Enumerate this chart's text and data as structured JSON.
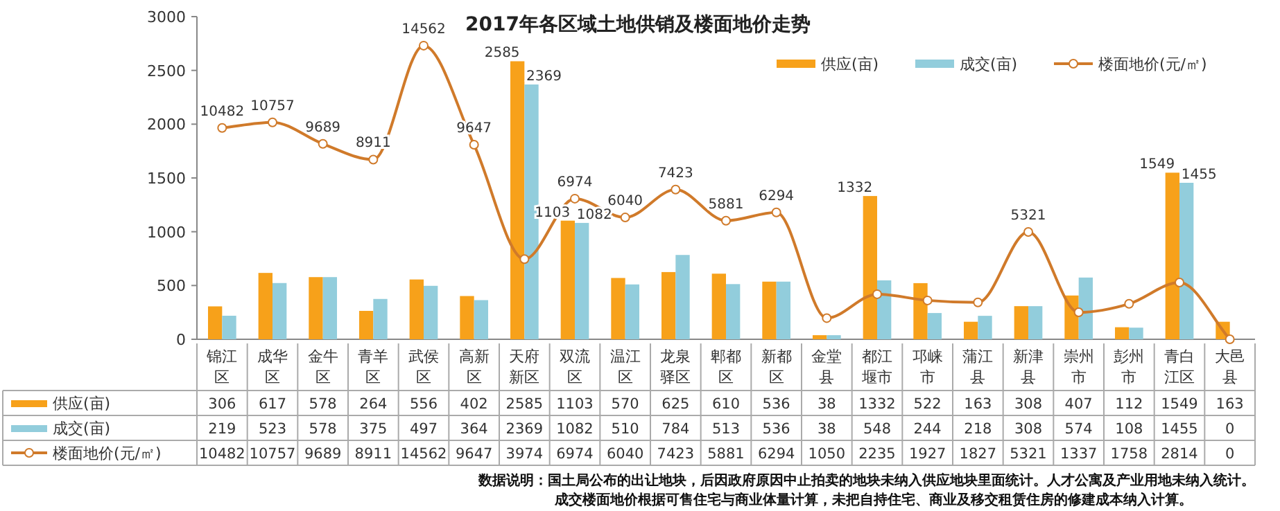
{
  "chart_data": {
    "type": "bar",
    "title": "2017年各区域土地供销及楼面地价走势",
    "categories": [
      "锦江区",
      "成华区",
      "金牛区",
      "青羊区",
      "武侯区",
      "高新区",
      "天府新区",
      "双流区",
      "温江区",
      "龙泉驿区",
      "郫都区",
      "新都区",
      "金堂县",
      "都江堰市",
      "邛崃市",
      "蒲江县",
      "新津县",
      "崇州市",
      "彭州市",
      "青白江区",
      "大邑县"
    ],
    "series": [
      {
        "name": "供应(亩)",
        "color": "#f7a11a",
        "values": [
          306,
          617,
          578,
          264,
          556,
          402,
          2585,
          1103,
          570,
          625,
          610,
          536,
          38,
          1332,
          522,
          163,
          308,
          407,
          112,
          1549,
          163
        ]
      },
      {
        "name": "成交(亩)",
        "color": "#92cddc",
        "values": [
          219,
          523,
          578,
          375,
          497,
          364,
          2369,
          1082,
          510,
          784,
          513,
          536,
          38,
          548,
          244,
          218,
          308,
          574,
          108,
          1455,
          0
        ]
      },
      {
        "name": "楼面地价(元/㎡)",
        "type": "line",
        "axis": "y2",
        "color": "#d07a2a",
        "marker": "circle",
        "values": [
          10482,
          10757,
          9689,
          8911,
          14562,
          9647,
          3974,
          6974,
          6040,
          7423,
          5881,
          6294,
          1050,
          2235,
          1927,
          1827,
          5321,
          1337,
          1758,
          2814,
          0
        ],
        "value_labels": [
          "10482",
          "10757",
          "9689",
          "8911",
          "14562",
          "9647",
          "3974",
          "6974",
          "6040",
          "7423",
          "5881",
          "6294",
          "1050",
          "2235",
          "1927",
          "1827",
          "5321",
          "1337",
          "1758",
          "2814",
          "0"
        ]
      }
    ],
    "ylim": [
      0,
      3000
    ],
    "yticks": [
      0,
      500,
      1000,
      1500,
      2000,
      2500,
      3000
    ],
    "y2lim": [
      0,
      16000
    ],
    "data_labels": true,
    "legend": "top right",
    "grid": false,
    "annotations": [
      {
        "text": "2585",
        "x": "天府新区",
        "y": 2585
      },
      {
        "text": "2369",
        "x": "天府新区",
        "y": 2369
      },
      {
        "text": "1103",
        "x": "双流区",
        "y": 1103
      },
      {
        "text": "1082",
        "x": "双流区",
        "y": 1082
      },
      {
        "text": "1332",
        "x": "都江堰市",
        "y": 1332
      },
      {
        "text": "1549",
        "x": "青白江区",
        "y": 1549
      },
      {
        "text": "1455",
        "x": "青白江区",
        "y": 1455
      },
      "10482",
      "10757",
      "9689",
      "8911",
      "14562",
      "9647",
      "6974",
      "6040",
      "7423",
      "5881",
      "6294",
      "5321",
      "数据说明：国土局公布的出让地块，后因政府原因中止拍卖的地块未纳入供应地块里面统计。人才公寓及产业用地未纳入统计。",
      "成交楼面地价根据可售住宅与商业体量计算，未把自持住宅、商业及移交租赁住房的修建成本纳入计算。"
    ]
  }
}
